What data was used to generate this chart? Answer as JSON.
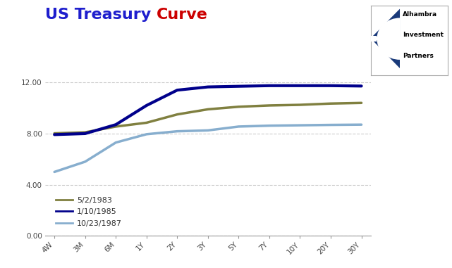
{
  "title_part1": "US Treasury ",
  "title_part2": "Curve",
  "title_color1": "#1E1ECD",
  "title_color2": "#CC0000",
  "title_fontsize": 16,
  "background_color": "#FFFFFF",
  "x_labels": [
    "4W",
    "3M",
    "6M",
    "1Y",
    "2Y",
    "3Y",
    "5Y",
    "7Y",
    "10Y",
    "20Y",
    "30Y"
  ],
  "x_positions": [
    0,
    1,
    2,
    3,
    4,
    5,
    6,
    7,
    8,
    9,
    10
  ],
  "series": [
    {
      "label": "5/2/1983",
      "color": "#808040",
      "linewidth": 2.5,
      "values": [
        8.02,
        8.1,
        8.55,
        8.85,
        9.5,
        9.9,
        10.1,
        10.2,
        10.25,
        10.35,
        10.4
      ]
    },
    {
      "label": "1/10/1985",
      "color": "#00008B",
      "linewidth": 3.0,
      "values": [
        7.92,
        8.0,
        8.7,
        10.2,
        11.4,
        11.65,
        11.7,
        11.75,
        11.75,
        11.75,
        11.72
      ]
    },
    {
      "label": "10/23/1987",
      "color": "#87AECE",
      "linewidth": 2.5,
      "values": [
        5.0,
        5.8,
        7.3,
        7.95,
        8.18,
        8.25,
        8.55,
        8.62,
        8.65,
        8.68,
        8.7
      ]
    }
  ],
  "ylim": [
    0,
    13.0
  ],
  "yticks": [
    0.0,
    4.0,
    8.0,
    12.0
  ],
  "ytick_labels": [
    "0.00",
    "4.00",
    "8.00",
    "12.00"
  ],
  "grid_color": "#CCCCCC",
  "grid_linestyle": "--",
  "grid_linewidth": 0.8,
  "logo_text_lines": [
    "Alhambra",
    "Investment",
    "Partners"
  ]
}
